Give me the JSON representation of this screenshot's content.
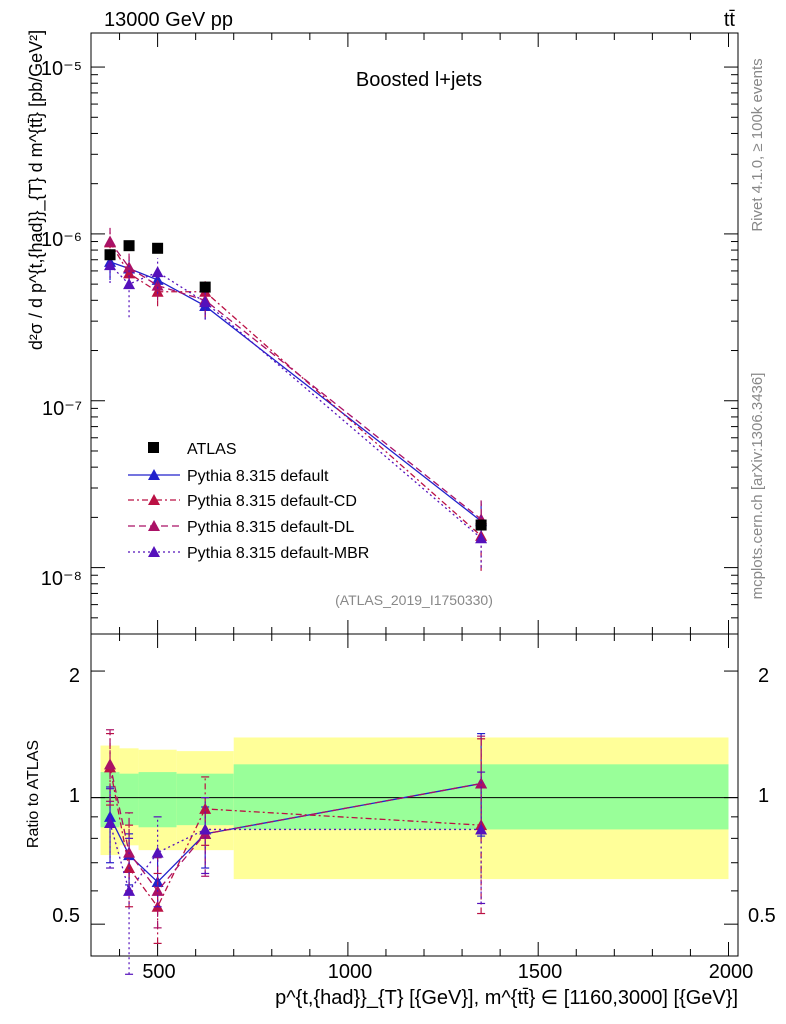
{
  "header": {
    "energy_label": "13000 GeV pp",
    "process_label": "tt̄",
    "panel_title": "Boosted l+jets",
    "watermark": "(ATLAS_2019_I1750330)"
  },
  "side": {
    "rivet_label": "Rivet 4.1.0, ≥ 100k events",
    "mcplots_label": "mcplots.cern.ch [arXiv:1306.3436]"
  },
  "axes": {
    "ylabel_top": "d²σ / d p^{t,{had}}_{T} d m^{tt̄} [pb/GeV²]",
    "ylabel_bottom": "Ratio to ATLAS",
    "xlabel": "p^{t,{had}}_{T} [{GeV}], m^{tt̄} ∈ [1160,3000] [{GeV}]",
    "x_ticks": [
      "500",
      "1000",
      "1500",
      "2000"
    ],
    "y_ticks_top": [
      "10⁻⁵",
      "10⁻⁶",
      "10⁻⁷",
      "10⁻⁸"
    ],
    "y_ticks_ratio": [
      "0.5",
      "1",
      "2"
    ]
  },
  "legend": [
    {
      "label": "ATLAS",
      "color": "#000000",
      "marker": "square",
      "dash": ""
    },
    {
      "label": "Pythia 8.315 default",
      "color": "#2222cc",
      "marker": "triangle",
      "dash": ""
    },
    {
      "label": "Pythia 8.315 default-CD",
      "color": "#bb1144",
      "marker": "triangle",
      "dash": "6,3,2,3"
    },
    {
      "label": "Pythia 8.315 default-DL",
      "color": "#aa1166",
      "marker": "triangle",
      "dash": "7,4"
    },
    {
      "label": "Pythia 8.315 default-MBR",
      "color": "#5511bb",
      "marker": "triangle",
      "dash": "2,3"
    }
  ],
  "chart_data": {
    "type": "scatter",
    "title": "Boosted l+jets",
    "x_range": [
      325,
      2025
    ],
    "y_range_top_log": [
      4e-09,
      1.6e-05
    ],
    "y_range_ratio_log": [
      0.42,
      2.45
    ],
    "bins": [
      [
        350,
        400
      ],
      [
        400,
        450
      ],
      [
        450,
        550
      ],
      [
        550,
        700
      ],
      [
        700,
        2000
      ]
    ],
    "x": [
      375,
      425,
      500,
      625,
      1350
    ],
    "data": {
      "name": "ATLAS",
      "values": [
        7.5e-07,
        8.5e-07,
        8.2e-07,
        4.8e-07,
        1.8e-08
      ],
      "band_green": [
        [
          0.85,
          1.15
        ],
        [
          0.86,
          1.14
        ],
        [
          0.85,
          1.15
        ],
        [
          0.86,
          1.14
        ],
        [
          0.84,
          1.2
        ]
      ],
      "band_yellow": [
        [
          0.73,
          1.33
        ],
        [
          0.77,
          1.31
        ],
        [
          0.75,
          1.3
        ],
        [
          0.75,
          1.29
        ],
        [
          0.64,
          1.39
        ]
      ]
    },
    "series": [
      {
        "name": "Pythia 8.315 default",
        "color": "#2222cc",
        "dash": "",
        "values": [
          6.8e-07,
          6.2e-07,
          5.3e-07,
          3.7e-07,
          1.9e-08
        ],
        "ratio": [
          0.9,
          0.73,
          0.63,
          0.82,
          1.08
        ],
        "ratio_err": [
          [
            0.7,
            1.06
          ],
          [
            0.62,
            0.82
          ],
          [
            0.54,
            0.72
          ],
          [
            0.68,
            0.95
          ],
          [
            0.81,
            1.42
          ]
        ]
      },
      {
        "name": "Pythia 8.315 default-CD",
        "color": "#bb1144",
        "dash": "6,3,2,3",
        "values": [
          8.9e-07,
          5.8e-07,
          4.5e-07,
          4.5e-07,
          1.55e-08
        ],
        "ratio": [
          1.18,
          0.68,
          0.55,
          0.94,
          0.86
        ],
        "ratio_err": [
          [
            0.96,
            1.42
          ],
          [
            0.55,
            0.86
          ],
          [
            0.45,
            0.66
          ],
          [
            0.77,
            1.12
          ],
          [
            0.53,
            1.38
          ]
        ]
      },
      {
        "name": "Pythia 8.315 default-DL",
        "color": "#aa1166",
        "dash": "7,4",
        "values": [
          9e-07,
          6.3e-07,
          4.9e-07,
          4e-07,
          1.95e-08
        ],
        "ratio": [
          1.2,
          0.74,
          0.6,
          0.82,
          1.08
        ],
        "ratio_err": [
          [
            0.98,
            1.45
          ],
          [
            0.6,
            0.92
          ],
          [
            0.49,
            0.72
          ],
          [
            0.65,
            1.0
          ],
          [
            0.82,
            1.4
          ]
        ]
      },
      {
        "name": "Pythia 8.315 default-MBR",
        "color": "#5511bb",
        "dash": "2,3",
        "values": [
          6.5e-07,
          5e-07,
          5.9e-07,
          3.9e-07,
          1.5e-08
        ],
        "ratio": [
          0.87,
          0.6,
          0.74,
          0.84,
          0.84
        ],
        "ratio_err": [
          [
            0.68,
            1.05
          ],
          [
            0.38,
            0.8
          ],
          [
            0.55,
            0.9
          ],
          [
            0.66,
            1.0
          ],
          [
            0.56,
            1.15
          ]
        ]
      }
    ]
  }
}
